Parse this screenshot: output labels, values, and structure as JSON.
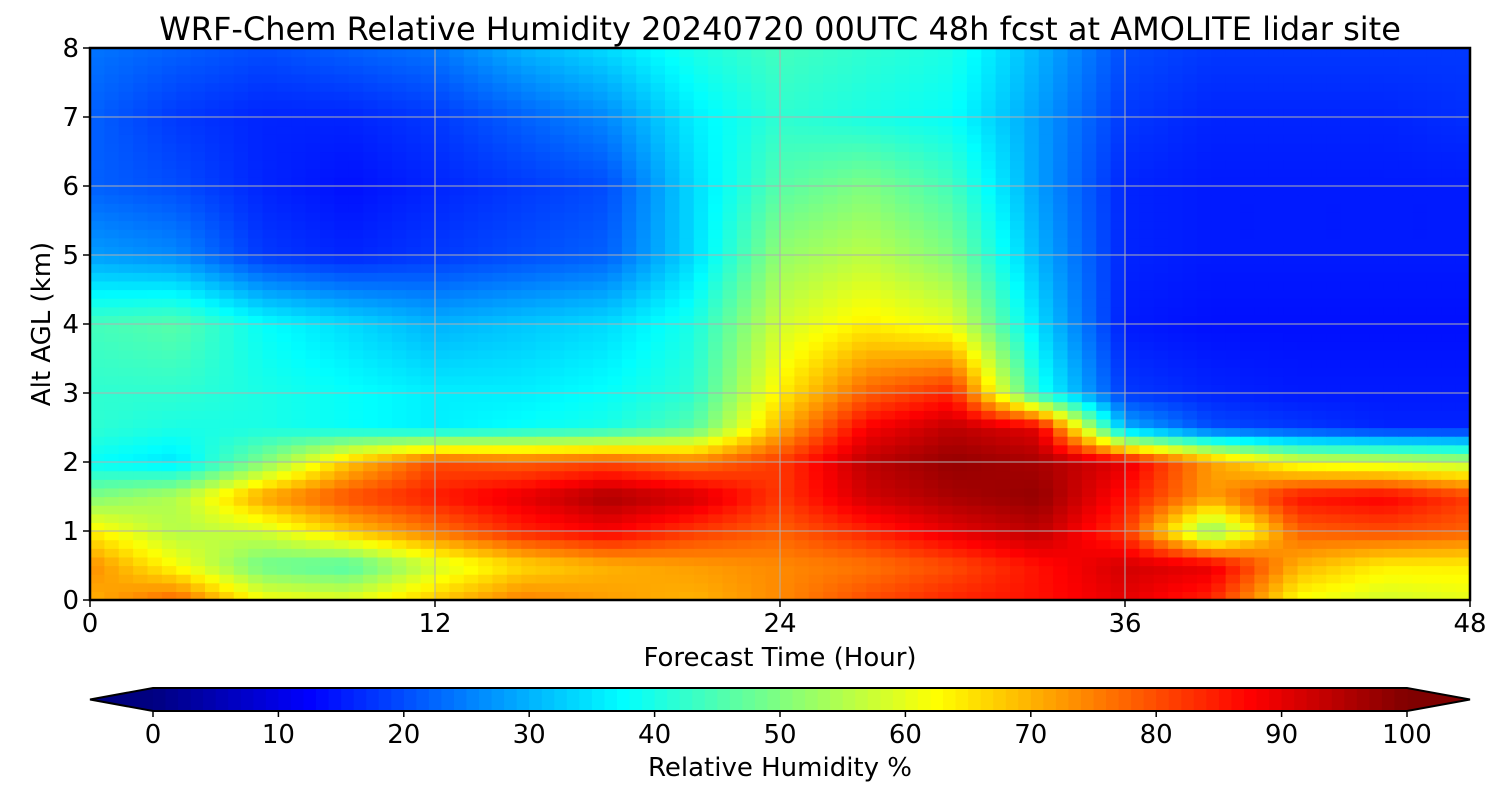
{
  "chart_data": {
    "type": "heatmap",
    "title": "WRF-Chem Relative Humidity 20240720 00UTC 48h fcst at AMOLITE lidar site",
    "xlabel": "Forecast Time (Hour)",
    "ylabel": "Alt AGL (km)",
    "xlim": [
      0,
      48
    ],
    "ylim": [
      0,
      8
    ],
    "x_ticks": [
      0,
      12,
      24,
      36,
      48
    ],
    "y_ticks": [
      0,
      1,
      2,
      3,
      4,
      5,
      6,
      7,
      8
    ],
    "grid": true,
    "colorscale": "jet",
    "colorbar": {
      "label": "Relative Humidity %",
      "range": [
        0,
        100
      ],
      "ticks": [
        0,
        10,
        20,
        30,
        40,
        50,
        60,
        70,
        80,
        90,
        100
      ],
      "placement": "bottom",
      "extend": "both"
    },
    "x": [
      0,
      3,
      6,
      9,
      12,
      15,
      18,
      21,
      24,
      27,
      30,
      33,
      36,
      39,
      42,
      45,
      48
    ],
    "y": [
      0,
      0.5,
      1,
      1.5,
      2,
      2.5,
      3,
      4,
      5,
      6,
      7,
      8
    ],
    "z": [
      [
        70,
        78,
        62,
        60,
        68,
        75,
        72,
        70,
        74,
        80,
        84,
        86,
        90,
        84,
        62,
        58,
        60
      ],
      [
        74,
        62,
        48,
        45,
        58,
        66,
        70,
        72,
        74,
        76,
        80,
        86,
        92,
        90,
        70,
        64,
        64
      ],
      [
        64,
        55,
        58,
        68,
        76,
        84,
        88,
        82,
        78,
        84,
        90,
        94,
        82,
        50,
        78,
        80,
        78
      ],
      [
        50,
        55,
        72,
        80,
        85,
        90,
        96,
        92,
        82,
        92,
        96,
        98,
        86,
        72,
        86,
        88,
        82
      ],
      [
        38,
        35,
        50,
        68,
        80,
        78,
        80,
        76,
        82,
        94,
        98,
        96,
        90,
        72,
        60,
        58,
        55
      ],
      [
        42,
        40,
        40,
        38,
        36,
        38,
        40,
        46,
        70,
        88,
        94,
        90,
        30,
        20,
        18,
        16,
        16
      ],
      [
        42,
        42,
        40,
        38,
        36,
        36,
        38,
        42,
        64,
        78,
        84,
        40,
        18,
        16,
        15,
        15,
        15
      ],
      [
        44,
        46,
        38,
        34,
        30,
        32,
        34,
        40,
        58,
        64,
        60,
        34,
        15,
        14,
        14,
        14,
        14
      ],
      [
        28,
        26,
        18,
        16,
        18,
        20,
        22,
        34,
        52,
        56,
        50,
        30,
        16,
        15,
        15,
        15,
        15
      ],
      [
        22,
        20,
        16,
        14,
        16,
        18,
        20,
        34,
        46,
        50,
        44,
        28,
        16,
        15,
        15,
        15,
        15
      ],
      [
        22,
        18,
        16,
        16,
        18,
        22,
        26,
        36,
        42,
        40,
        38,
        28,
        18,
        16,
        16,
        16,
        17
      ],
      [
        24,
        22,
        20,
        22,
        24,
        30,
        34,
        40,
        44,
        42,
        40,
        30,
        20,
        18,
        18,
        18,
        18
      ]
    ]
  }
}
